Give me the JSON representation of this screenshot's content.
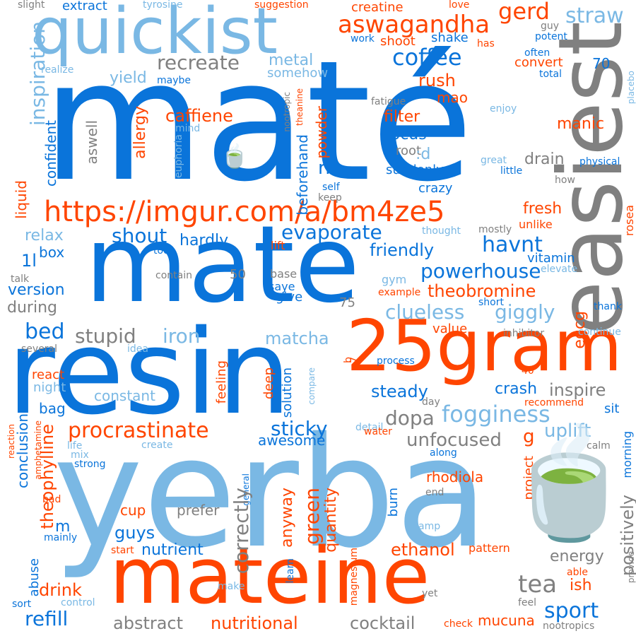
{
  "palette": {
    "blue": "#0a74da",
    "light_blue": "#7ab8e4",
    "orange": "#ff4500",
    "gray": "#808080"
  },
  "words": [
    "maté",
    "yerba",
    "resin",
    "mate",
    "easiest",
    "25gram",
    "mateine",
    "quickist",
    "https://imgur.com/a/bm4ze5",
    "aswagandha",
    "coffee",
    "gerd",
    "straw",
    "inspiration",
    "recreate",
    "yield",
    "metal",
    "somehow",
    "creatine",
    "extract",
    "tyrosine",
    "slight",
    "suggestion",
    "love",
    "potent",
    "guy",
    "work",
    "shoot",
    "shake",
    "has",
    "often",
    "convert",
    "total",
    "realize",
    "maybe",
    "70",
    "caffiene",
    "rush",
    "mao",
    "fatigue",
    "nootropic",
    "theanine",
    "placebo",
    "filter",
    "manic",
    "allergy",
    "focus",
    "enjoy",
    "mind",
    "euphoria",
    "root",
    ":d",
    "drain",
    "powder",
    "beforehand",
    "confident",
    "aswell",
    "suddenly",
    "great",
    "physical",
    "rr",
    "little",
    "how",
    "crazy",
    "self",
    "keep",
    "liquid",
    "fresh",
    "rosea",
    "unlike",
    "shout",
    "hardly",
    "evaporate",
    "thought",
    "mostly",
    "relax",
    "lift",
    "havnt",
    "too",
    "friendly",
    "powerhouse",
    "box",
    "1l",
    "vitamin",
    "elevate",
    "talk",
    "contain",
    "50",
    "base",
    "version",
    "saye",
    "give",
    "gym",
    "example",
    "theobromine",
    "during",
    "75",
    "short",
    "clueless",
    "giggly",
    "egcg",
    "thank",
    "bed",
    "stupid",
    "iron",
    "matcha",
    "value",
    "inhibitor",
    "continue",
    "several",
    "idea",
    "process",
    "b",
    "7",
    "react",
    "constant",
    "night",
    "deep",
    "solution",
    "compare",
    "steady",
    "crash",
    "inspire",
    "fogginess",
    "40",
    "recommend",
    "sit",
    "bag",
    "dopa",
    "day",
    "feeling",
    "procrastinate",
    "uplift",
    "sticky",
    "conclusion",
    "theophylline",
    "amphetamine",
    "create",
    "detail",
    "water",
    "unfocused",
    "g",
    "morning",
    "life",
    "mix",
    "strong",
    "awesome",
    "along",
    "calm",
    "reaction",
    "rhodiola",
    "stress",
    "bad",
    "general",
    "end",
    "project",
    "glad",
    "cup",
    "prefer",
    "correctly",
    "quantity",
    "anyway",
    "green",
    "burn",
    "positively",
    "air",
    "amp",
    "m",
    "mainly",
    "guys",
    "nutrient",
    "start",
    "ethanol",
    "pattern",
    "provide",
    "energy",
    "abuse",
    "magnesium",
    "learn",
    "drink",
    "tea",
    "ish",
    "able",
    "make",
    "sport",
    "yet",
    "feel",
    "sort",
    "control",
    "refill",
    "abstract",
    "nutritional",
    "cocktail",
    "check",
    "mucuna",
    "nootropics",
    "🍵",
    "🍵"
  ]
}
